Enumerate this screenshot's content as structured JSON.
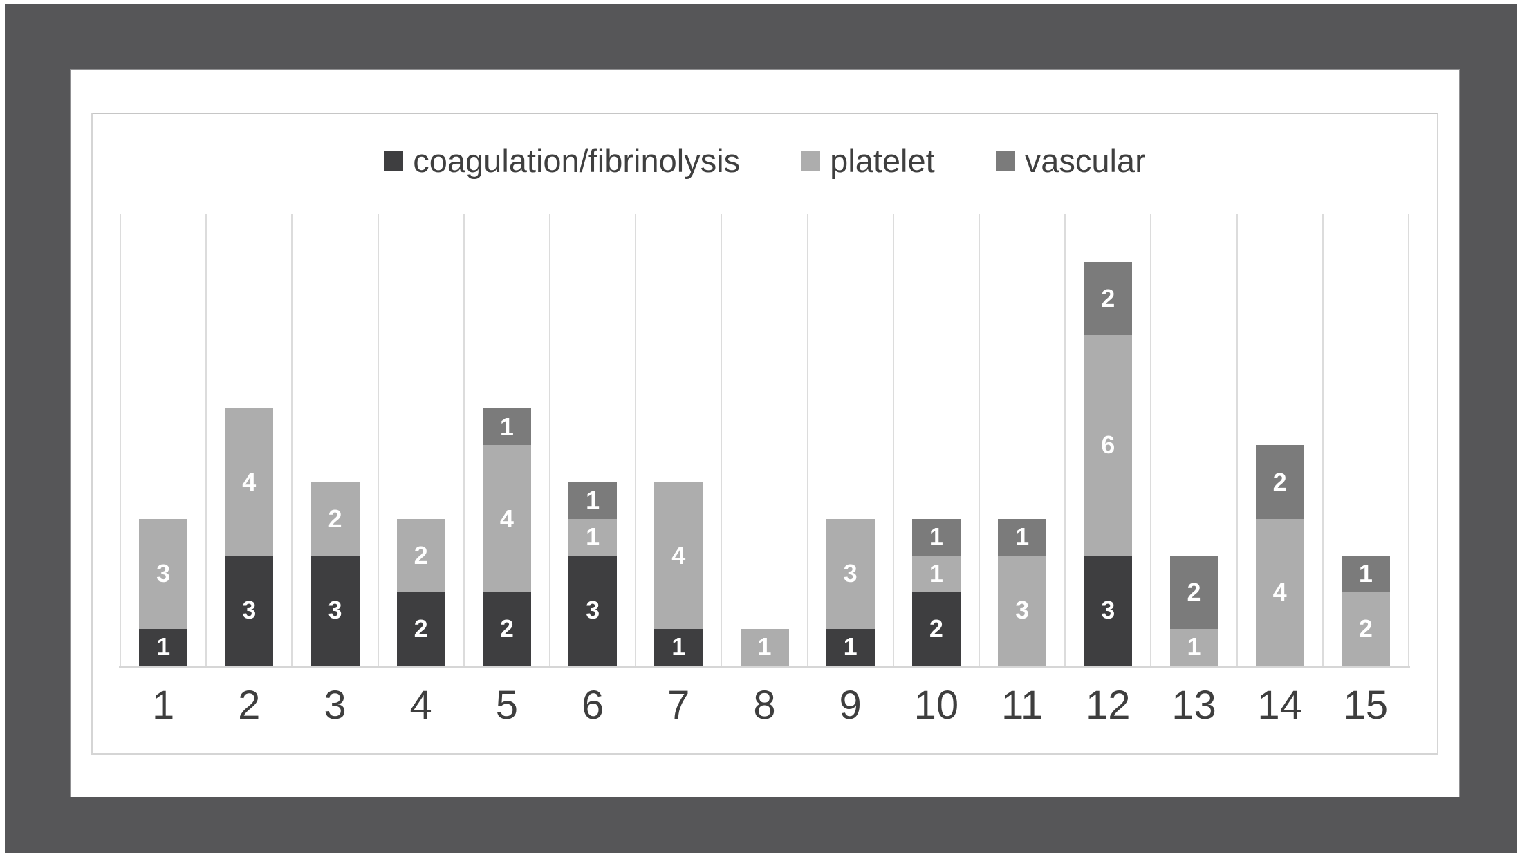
{
  "chart_data": {
    "type": "bar",
    "stacked": true,
    "title": "",
    "xlabel": "",
    "ylabel": "",
    "categories": [
      "1",
      "2",
      "3",
      "4",
      "5",
      "6",
      "7",
      "8",
      "9",
      "10",
      "11",
      "12",
      "13",
      "14",
      "15"
    ],
    "series": [
      {
        "name": "coagulation/fibrinolysis",
        "color": "#3e3e40",
        "values": [
          1,
          3,
          3,
          2,
          2,
          3,
          1,
          0,
          1,
          2,
          0,
          3,
          0,
          0,
          0
        ]
      },
      {
        "name": "platelet",
        "color": "#adadad",
        "values": [
          3,
          4,
          2,
          2,
          4,
          1,
          4,
          1,
          3,
          1,
          3,
          6,
          1,
          4,
          2
        ]
      },
      {
        "name": "vascular",
        "color": "#7b7b7b",
        "values": [
          0,
          0,
          0,
          0,
          1,
          1,
          0,
          0,
          0,
          1,
          1,
          2,
          2,
          2,
          1
        ]
      }
    ],
    "totals": [
      4,
      7,
      5,
      4,
      7,
      5,
      5,
      1,
      4,
      4,
      4,
      11,
      3,
      6,
      3
    ],
    "ylim": [
      0,
      12.3
    ],
    "grid": "vertical",
    "legend_position": "top",
    "value_labels": true,
    "value_label_color": "#ffffff",
    "axis_text_color": "#3e3e3e",
    "gridline_color": "#dcdcdc",
    "frame_color": "#565658"
  }
}
